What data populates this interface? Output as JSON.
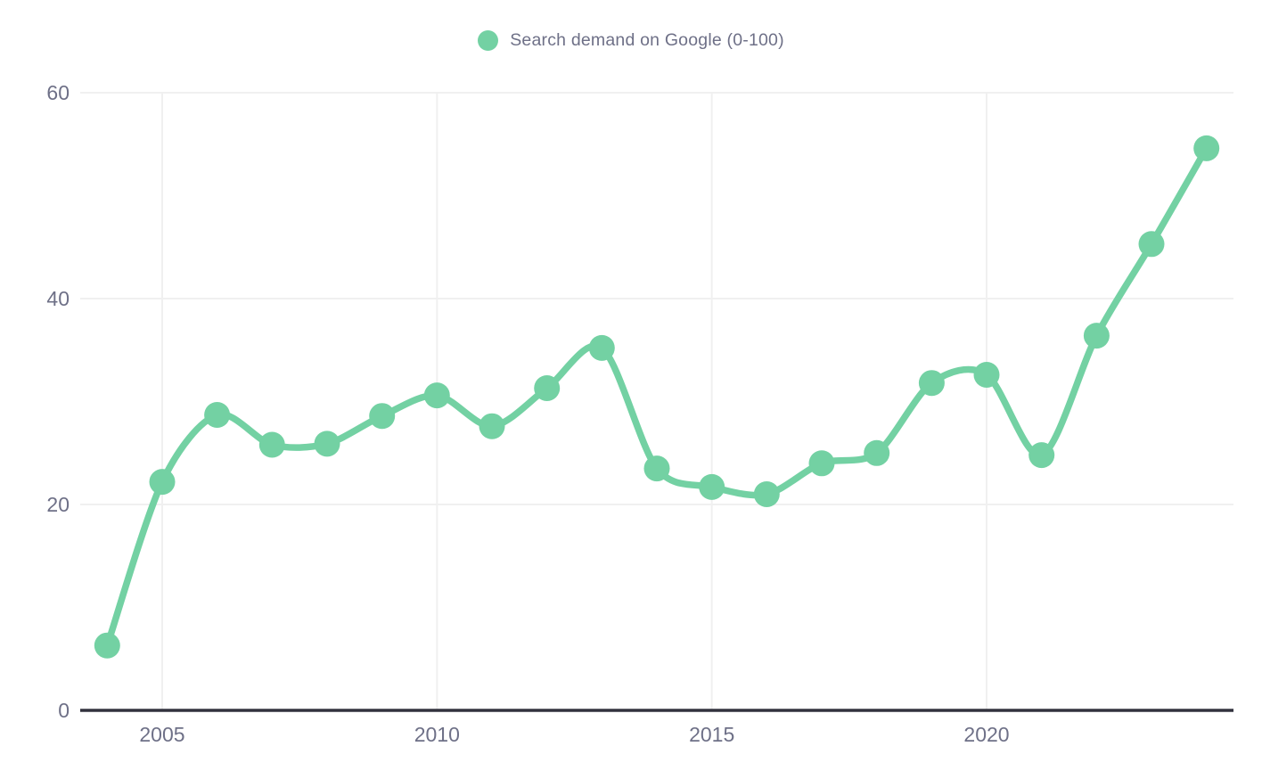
{
  "legend": {
    "label": "Search demand on Google (0-100)"
  },
  "chart_data": {
    "type": "line",
    "title": "Search demand on Google (0-100)",
    "x": [
      2004,
      2005,
      2006,
      2007,
      2008,
      2009,
      2010,
      2011,
      2012,
      2013,
      2014,
      2015,
      2016,
      2017,
      2018,
      2019,
      2020,
      2021,
      2022,
      2023,
      2024
    ],
    "series": [
      {
        "name": "Search demand on Google (0-100)",
        "values": [
          6.3,
          22.2,
          28.7,
          25.8,
          25.9,
          28.6,
          30.6,
          27.6,
          31.3,
          35.2,
          23.5,
          21.7,
          21.0,
          24.0,
          25.0,
          31.8,
          32.6,
          24.8,
          36.4,
          45.3,
          54.6
        ]
      }
    ],
    "xlabel": "",
    "ylabel": "",
    "ylim": [
      0,
      60
    ],
    "yticks": [
      0,
      20,
      40,
      60
    ],
    "xticks": [
      2005,
      2010,
      2015,
      2020
    ],
    "grid": true,
    "legend_position": "top-center",
    "colors": {
      "series": "#73d1a3",
      "axis_text": "#6e7087",
      "axis_line": "#32323e",
      "gridline": "#f0f0f0",
      "background": "#ffffff"
    }
  }
}
